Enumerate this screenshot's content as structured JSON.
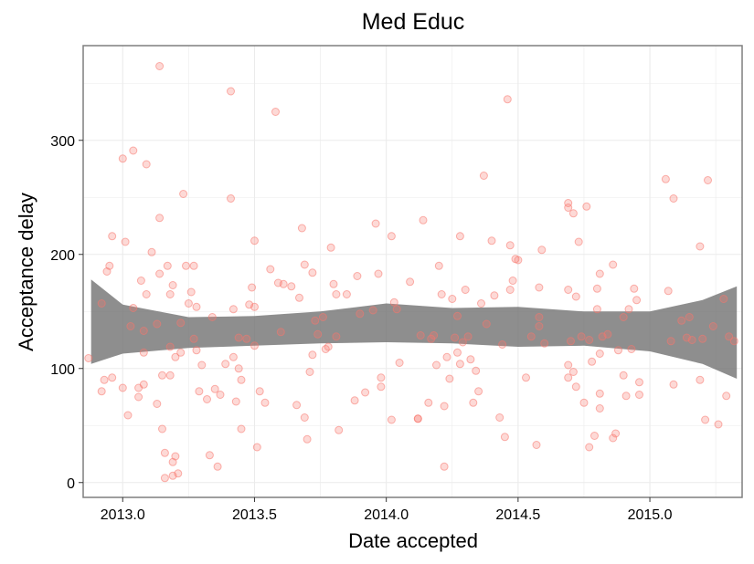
{
  "chart_data": {
    "type": "scatter",
    "title": "Med Educ",
    "xlabel": "Date accepted",
    "ylabel": "Acceptance delay",
    "xlim": [
      2012.85,
      2015.35
    ],
    "ylim": [
      -13,
      383
    ],
    "xticks": [
      2013.0,
      2013.5,
      2014.0,
      2014.5,
      2015.0
    ],
    "xtick_labels": [
      "2013.0",
      "2013.5",
      "2014.0",
      "2014.5",
      "2015.0"
    ],
    "yticks": [
      0,
      100,
      200,
      300
    ],
    "ytick_labels": [
      "0",
      "100",
      "200",
      "300"
    ],
    "grid": true,
    "legend": "none",
    "colors": {
      "points": "#f8766d",
      "band": "#6e6e6e",
      "grid": "#ebebeb",
      "frame": "#7f7f7f"
    },
    "smooth_band": [
      {
        "x": 2012.88,
        "lower": 104,
        "upper": 178
      },
      {
        "x": 2013.0,
        "lower": 113,
        "upper": 156
      },
      {
        "x": 2013.25,
        "lower": 118,
        "upper": 145
      },
      {
        "x": 2013.5,
        "lower": 120,
        "upper": 146
      },
      {
        "x": 2013.75,
        "lower": 122,
        "upper": 150
      },
      {
        "x": 2014.0,
        "lower": 123,
        "upper": 157
      },
      {
        "x": 2014.25,
        "lower": 122,
        "upper": 153
      },
      {
        "x": 2014.5,
        "lower": 119,
        "upper": 154
      },
      {
        "x": 2014.75,
        "lower": 120,
        "upper": 150
      },
      {
        "x": 2015.0,
        "lower": 115,
        "upper": 150
      },
      {
        "x": 2015.2,
        "lower": 104,
        "upper": 160
      },
      {
        "x": 2015.33,
        "lower": 91,
        "upper": 172
      }
    ],
    "points": [
      [
        2012.87,
        109
      ],
      [
        2012.92,
        157
      ],
      [
        2012.92,
        80
      ],
      [
        2012.93,
        90
      ],
      [
        2012.94,
        185
      ],
      [
        2012.95,
        190
      ],
      [
        2012.96,
        216
      ],
      [
        2012.96,
        92
      ],
      [
        2013.0,
        284
      ],
      [
        2013.0,
        83
      ],
      [
        2013.01,
        211
      ],
      [
        2013.02,
        59
      ],
      [
        2013.03,
        137
      ],
      [
        2013.04,
        291
      ],
      [
        2013.04,
        153
      ],
      [
        2013.06,
        83
      ],
      [
        2013.06,
        75
      ],
      [
        2013.07,
        177
      ],
      [
        2013.08,
        86
      ],
      [
        2013.08,
        114
      ],
      [
        2013.08,
        133
      ],
      [
        2013.09,
        279
      ],
      [
        2013.09,
        165
      ],
      [
        2013.11,
        202
      ],
      [
        2013.13,
        69
      ],
      [
        2013.13,
        139
      ],
      [
        2013.14,
        365
      ],
      [
        2013.14,
        232
      ],
      [
        2013.14,
        183
      ],
      [
        2013.15,
        47
      ],
      [
        2013.15,
        94
      ],
      [
        2013.16,
        26
      ],
      [
        2013.16,
        4
      ],
      [
        2013.17,
        190
      ],
      [
        2013.18,
        165
      ],
      [
        2013.18,
        119
      ],
      [
        2013.18,
        94
      ],
      [
        2013.19,
        173
      ],
      [
        2013.19,
        18
      ],
      [
        2013.19,
        6
      ],
      [
        2013.2,
        110
      ],
      [
        2013.2,
        23
      ],
      [
        2013.21,
        8
      ],
      [
        2013.22,
        140
      ],
      [
        2013.22,
        114
      ],
      [
        2013.23,
        253
      ],
      [
        2013.24,
        190
      ],
      [
        2013.25,
        157
      ],
      [
        2013.26,
        167
      ],
      [
        2013.27,
        190
      ],
      [
        2013.27,
        126
      ],
      [
        2013.28,
        116
      ],
      [
        2013.28,
        154
      ],
      [
        2013.29,
        80
      ],
      [
        2013.3,
        103
      ],
      [
        2013.32,
        73
      ],
      [
        2013.33,
        24
      ],
      [
        2013.34,
        145
      ],
      [
        2013.35,
        82
      ],
      [
        2013.36,
        14
      ],
      [
        2013.37,
        77
      ],
      [
        2013.39,
        104
      ],
      [
        2013.41,
        343
      ],
      [
        2013.41,
        249
      ],
      [
        2013.42,
        110
      ],
      [
        2013.42,
        152
      ],
      [
        2013.43,
        71
      ],
      [
        2013.44,
        127
      ],
      [
        2013.44,
        100
      ],
      [
        2013.45,
        90
      ],
      [
        2013.45,
        47
      ],
      [
        2013.47,
        126
      ],
      [
        2013.48,
        156
      ],
      [
        2013.49,
        171
      ],
      [
        2013.5,
        154
      ],
      [
        2013.5,
        212
      ],
      [
        2013.5,
        120
      ],
      [
        2013.51,
        31
      ],
      [
        2013.52,
        80
      ],
      [
        2013.54,
        70
      ],
      [
        2013.56,
        187
      ],
      [
        2013.58,
        325
      ],
      [
        2013.59,
        175
      ],
      [
        2013.6,
        132
      ],
      [
        2013.61,
        174
      ],
      [
        2013.64,
        172
      ],
      [
        2013.66,
        68
      ],
      [
        2013.67,
        162
      ],
      [
        2013.68,
        223
      ],
      [
        2013.69,
        191
      ],
      [
        2013.69,
        57
      ],
      [
        2013.7,
        38
      ],
      [
        2013.71,
        97
      ],
      [
        2013.72,
        112
      ],
      [
        2013.72,
        184
      ],
      [
        2013.73,
        142
      ],
      [
        2013.74,
        130
      ],
      [
        2013.76,
        145
      ],
      [
        2013.77,
        117
      ],
      [
        2013.78,
        119
      ],
      [
        2013.79,
        206
      ],
      [
        2013.8,
        174
      ],
      [
        2013.81,
        165
      ],
      [
        2013.81,
        128
      ],
      [
        2013.82,
        46
      ],
      [
        2013.85,
        165
      ],
      [
        2013.88,
        72
      ],
      [
        2013.89,
        181
      ],
      [
        2013.9,
        148
      ],
      [
        2013.92,
        79
      ],
      [
        2013.95,
        151
      ],
      [
        2013.96,
        227
      ],
      [
        2013.97,
        183
      ],
      [
        2013.98,
        92
      ],
      [
        2013.98,
        84
      ],
      [
        2014.02,
        216
      ],
      [
        2014.02,
        55
      ],
      [
        2014.03,
        158
      ],
      [
        2014.04,
        152
      ],
      [
        2014.05,
        105
      ],
      [
        2014.09,
        176
      ],
      [
        2014.12,
        56
      ],
      [
        2014.12,
        56
      ],
      [
        2014.13,
        129
      ],
      [
        2014.14,
        230
      ],
      [
        2014.16,
        70
      ],
      [
        2014.17,
        126
      ],
      [
        2014.18,
        129
      ],
      [
        2014.19,
        103
      ],
      [
        2014.2,
        190
      ],
      [
        2014.21,
        165
      ],
      [
        2014.22,
        67
      ],
      [
        2014.22,
        14
      ],
      [
        2014.23,
        110
      ],
      [
        2014.24,
        91
      ],
      [
        2014.25,
        161
      ],
      [
        2014.26,
        127
      ],
      [
        2014.27,
        146
      ],
      [
        2014.27,
        114
      ],
      [
        2014.28,
        216
      ],
      [
        2014.28,
        104
      ],
      [
        2014.29,
        123
      ],
      [
        2014.3,
        169
      ],
      [
        2014.31,
        128
      ],
      [
        2014.32,
        108
      ],
      [
        2014.33,
        70
      ],
      [
        2014.34,
        98
      ],
      [
        2014.35,
        80
      ],
      [
        2014.36,
        157
      ],
      [
        2014.37,
        269
      ],
      [
        2014.38,
        139
      ],
      [
        2014.4,
        212
      ],
      [
        2014.41,
        164
      ],
      [
        2014.43,
        57
      ],
      [
        2014.44,
        121
      ],
      [
        2014.45,
        40
      ],
      [
        2014.46,
        336
      ],
      [
        2014.47,
        208
      ],
      [
        2014.47,
        169
      ],
      [
        2014.48,
        177
      ],
      [
        2014.49,
        196
      ],
      [
        2014.5,
        195
      ],
      [
        2014.53,
        92
      ],
      [
        2014.55,
        128
      ],
      [
        2014.57,
        33
      ],
      [
        2014.58,
        171
      ],
      [
        2014.58,
        137
      ],
      [
        2014.58,
        145
      ],
      [
        2014.59,
        204
      ],
      [
        2014.6,
        122
      ],
      [
        2014.69,
        245
      ],
      [
        2014.69,
        241
      ],
      [
        2014.69,
        169
      ],
      [
        2014.69,
        103
      ],
      [
        2014.69,
        92
      ],
      [
        2014.7,
        124
      ],
      [
        2014.71,
        236
      ],
      [
        2014.71,
        97
      ],
      [
        2014.72,
        84
      ],
      [
        2014.72,
        163
      ],
      [
        2014.73,
        211
      ],
      [
        2014.74,
        128
      ],
      [
        2014.75,
        70
      ],
      [
        2014.76,
        242
      ],
      [
        2014.77,
        125
      ],
      [
        2014.77,
        31
      ],
      [
        2014.78,
        106
      ],
      [
        2014.79,
        41
      ],
      [
        2014.8,
        170
      ],
      [
        2014.8,
        152
      ],
      [
        2014.81,
        65
      ],
      [
        2014.81,
        183
      ],
      [
        2014.81,
        113
      ],
      [
        2014.81,
        78
      ],
      [
        2014.82,
        128
      ],
      [
        2014.84,
        130
      ],
      [
        2014.86,
        39
      ],
      [
        2014.86,
        191
      ],
      [
        2014.87,
        43
      ],
      [
        2014.88,
        116
      ],
      [
        2014.9,
        145
      ],
      [
        2014.9,
        94
      ],
      [
        2014.91,
        76
      ],
      [
        2014.92,
        152
      ],
      [
        2014.93,
        117
      ],
      [
        2014.94,
        170
      ],
      [
        2014.95,
        160
      ],
      [
        2014.96,
        88
      ],
      [
        2014.96,
        77
      ],
      [
        2015.06,
        266
      ],
      [
        2015.07,
        168
      ],
      [
        2015.08,
        124
      ],
      [
        2015.09,
        249
      ],
      [
        2015.09,
        86
      ],
      [
        2015.12,
        142
      ],
      [
        2015.14,
        127
      ],
      [
        2015.15,
        145
      ],
      [
        2015.16,
        125
      ],
      [
        2015.19,
        207
      ],
      [
        2015.19,
        90
      ],
      [
        2015.2,
        126
      ],
      [
        2015.21,
        55
      ],
      [
        2015.22,
        265
      ],
      [
        2015.24,
        137
      ],
      [
        2015.26,
        51
      ],
      [
        2015.28,
        161
      ],
      [
        2015.29,
        76
      ],
      [
        2015.3,
        128
      ],
      [
        2015.32,
        124
      ]
    ]
  }
}
